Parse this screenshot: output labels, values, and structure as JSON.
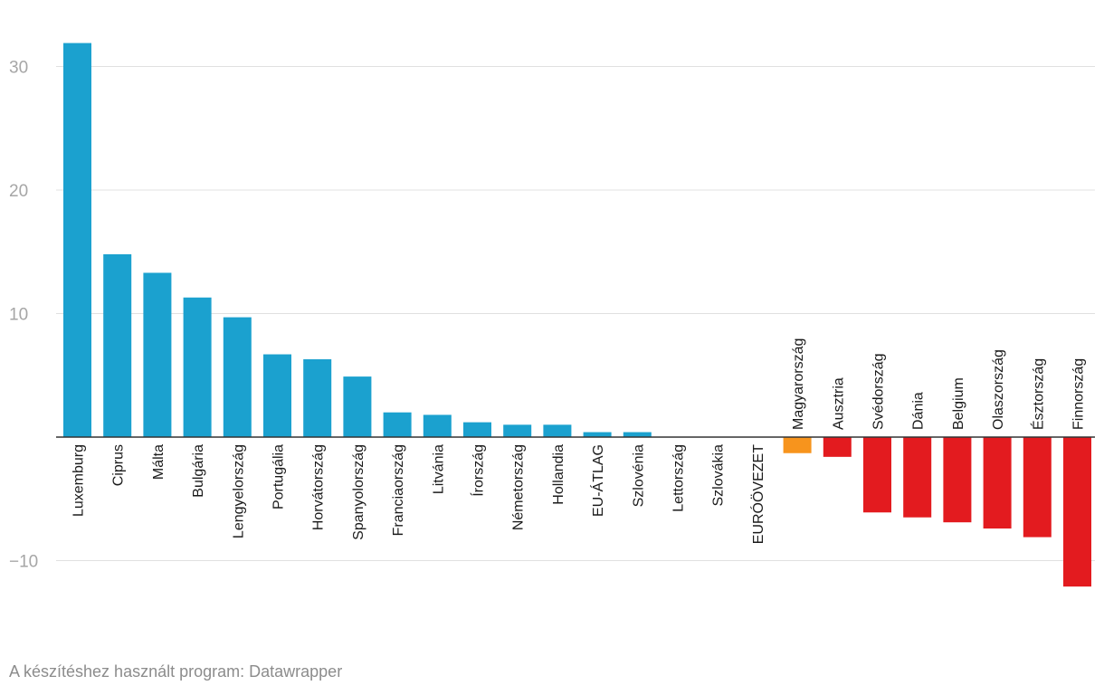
{
  "chart_data": {
    "type": "bar",
    "categories": [
      "Luxemburg",
      "Ciprus",
      "Málta",
      "Bulgária",
      "Lengyelország",
      "Portugália",
      "Horvátország",
      "Spanyolország",
      "Franciaország",
      "Litvánia",
      "Írország",
      "Németország",
      "Hollandia",
      "EU-ÁTLAG",
      "Szlovénia",
      "Lettország",
      "Szlovákia",
      "EURÓÖVEZET",
      "Magyarország",
      "Ausztria",
      "Svédország",
      "Dánia",
      "Belgium",
      "Olaszország",
      "Észtország",
      "Finnország"
    ],
    "values": [
      31.9,
      14.8,
      13.3,
      11.3,
      9.7,
      6.7,
      6.3,
      4.9,
      2.0,
      1.8,
      1.2,
      1.0,
      1.0,
      0.4,
      0.4,
      0,
      0,
      0,
      -1.3,
      -1.6,
      -6.1,
      -6.5,
      -6.9,
      -7.4,
      -8.1,
      -12.1
    ],
    "colors": [
      "#1ba1cf",
      "#1ba1cf",
      "#1ba1cf",
      "#1ba1cf",
      "#1ba1cf",
      "#1ba1cf",
      "#1ba1cf",
      "#1ba1cf",
      "#1ba1cf",
      "#1ba1cf",
      "#1ba1cf",
      "#1ba1cf",
      "#1ba1cf",
      "#1ba1cf",
      "#1ba1cf",
      "#1ba1cf",
      "#1ba1cf",
      "#1ba1cf",
      "#f7941d",
      "#e31b1f",
      "#e31b1f",
      "#e31b1f",
      "#e31b1f",
      "#e31b1f",
      "#e31b1f",
      "#e31b1f"
    ],
    "yticks": [
      30,
      20,
      10,
      -10
    ],
    "ytick_labels": [
      "30",
      "20",
      "10",
      "−10"
    ],
    "ylim": [
      -14.5,
      34
    ],
    "grid": true,
    "zero_line_color": "#333333",
    "grid_color": "#e0e0e0"
  },
  "footer": {
    "text": "A készítéshez használt program: Datawrapper"
  }
}
